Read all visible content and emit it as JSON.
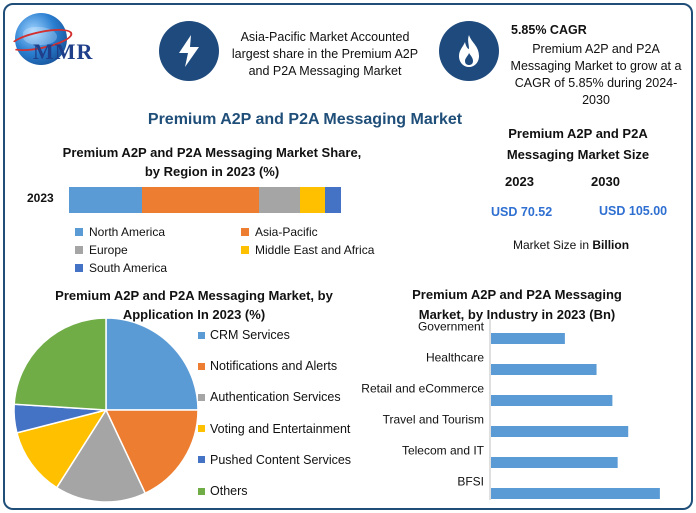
{
  "header": {
    "logo_text": "MMR",
    "left_text": "Asia-Pacific Market Accounted largest share in the Premium A2P and P2A Messaging Market",
    "cagr_title": "5.85% CAGR",
    "cagr_text": "Premium A2P and P2A Messaging Market to grow at a CAGR of 5.85% during 2024-2030",
    "badge_left_icon": "lightning-icon",
    "badge_right_icon": "flame-icon"
  },
  "main_title": "Premium A2P and P2A Messaging Market",
  "market_size": {
    "title": "Premium A2P and P2A Messaging Market Size",
    "year1": "2023",
    "year2": "2030",
    "value1": "USD 70.52",
    "value2": "USD 105.00",
    "unit_prefix": "Market Size in ",
    "unit_bold": "Billion",
    "value_color": "#2e6fd1"
  },
  "chart_data": [
    {
      "type": "bar",
      "orientation": "horizontal-stacked",
      "title": "Premium A2P and P2A Messaging Market Share, by Region in 2023 (%)",
      "categories": [
        "2023"
      ],
      "series": [
        {
          "name": "North America",
          "values": [
            27
          ],
          "color": "#5b9bd5"
        },
        {
          "name": "Asia-Pacific",
          "values": [
            43
          ],
          "color": "#ed7d31"
        },
        {
          "name": "Europe",
          "values": [
            15
          ],
          "color": "#a5a5a5"
        },
        {
          "name": "Middle East and Africa",
          "values": [
            9
          ],
          "color": "#ffc000"
        },
        {
          "name": "South America",
          "values": [
            6
          ],
          "color": "#4472c4"
        }
      ],
      "legend": "bottom"
    },
    {
      "type": "pie",
      "title": "Premium A2P and P2A Messaging Market, by Application In 2023 (%)",
      "slices": [
        {
          "name": "CRM Services",
          "value": 25,
          "color": "#5b9bd5"
        },
        {
          "name": "Notifications and Alerts",
          "value": 18,
          "color": "#ed7d31"
        },
        {
          "name": "Authentication Services",
          "value": 16,
          "color": "#a5a5a5"
        },
        {
          "name": "Voting and Entertainment",
          "value": 12,
          "color": "#ffc000"
        },
        {
          "name": "Pushed Content Services",
          "value": 5,
          "color": "#4472c4"
        },
        {
          "name": "Others",
          "value": 24,
          "color": "#70ad47"
        }
      ],
      "legend": "right"
    },
    {
      "type": "bar",
      "orientation": "horizontal",
      "title": "Premium A2P and P2A Messaging Market, by Industry in 2023 (Bn)",
      "categories": [
        "Government",
        "Healthcare",
        "Retail and eCommerce",
        "Travel and Tourism",
        "Telecom and IT",
        "BFSI"
      ],
      "values": [
        7,
        10,
        11.5,
        13,
        12,
        16
      ],
      "xlim": [
        0,
        18
      ],
      "color": "#5b9bd5",
      "grid": false
    }
  ]
}
